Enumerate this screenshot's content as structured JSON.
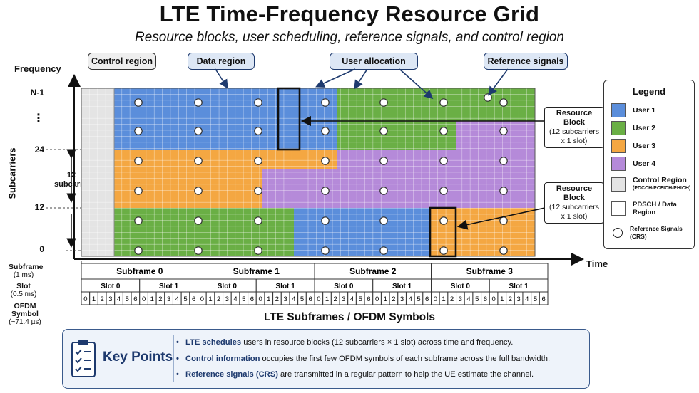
{
  "title": "LTE Time-Frequency Resource Grid",
  "subtitle": "Resource blocks, user scheduling, reference signals, and control region",
  "callouts": {
    "control": "Control region",
    "data": "Data region",
    "user_alloc": "User allocation",
    "ref_signals": "Reference signals"
  },
  "axes": {
    "frequency": "Frequency",
    "subcarriers": "Subcarriers",
    "time": "Time",
    "y_labels": [
      "N-1",
      "⋮",
      "24",
      "12",
      "0"
    ],
    "span_label": "12",
    "span_label_2": "subcarriers"
  },
  "resource_block": {
    "title": "Resource Block",
    "line1": "(12 subcarriers",
    "line2": "x 1 slot)"
  },
  "legend": {
    "title": "Legend",
    "items": [
      {
        "label": "User 1",
        "color": "#5b8edb"
      },
      {
        "label": "User 2",
        "color": "#6aaf45"
      },
      {
        "label": "User 3",
        "color": "#f4a742"
      },
      {
        "label": "User 4",
        "color": "#b58ad9"
      },
      {
        "label": "Control Region",
        "sub": "(PDCCH/PCFICH/PHICH)",
        "color": "#e4e4e4"
      },
      {
        "label": "PDSCH / Data Region",
        "color": "#ffffff"
      },
      {
        "label": "Reference Signals (CRS)",
        "icon": "circle"
      }
    ]
  },
  "timeline": {
    "subframe_label": "Subframe",
    "subframe_unit": "(1 ms)",
    "slot_label": "Slot",
    "slot_unit": "(0.5 ms)",
    "symbol_label": "OFDM Symbol",
    "symbol_unit": "(~71.4 µs)",
    "subframes": [
      "Subframe 0",
      "Subframe 1",
      "Subframe 2",
      "Subframe 3"
    ],
    "slots": [
      "Slot 0",
      "Slot 1"
    ],
    "symbols": [
      "0",
      "1",
      "2",
      "3",
      "4",
      "5",
      "6"
    ],
    "title": "LTE Subframes / OFDM Symbols"
  },
  "key_points": {
    "title": "Key Points",
    "lines": [
      {
        "bold": "LTE schedules",
        "text": " users in resource blocks (12 subcarriers × 1 slot) across time and frequency."
      },
      {
        "bold": "Control information",
        "text": " occupies the first few OFDM symbols of each subframe across the full bandwidth."
      },
      {
        "bold": "Reference signals (CRS)",
        "text": " are transmitted in a regular pattern to help the UE estimate the channel."
      }
    ]
  },
  "colors": {
    "user1": "#5b8edb",
    "user2": "#6aaf45",
    "user3": "#f4a742",
    "user4": "#b58ad9",
    "control": "#e4e4e4",
    "accent": "#1e3a6e"
  }
}
